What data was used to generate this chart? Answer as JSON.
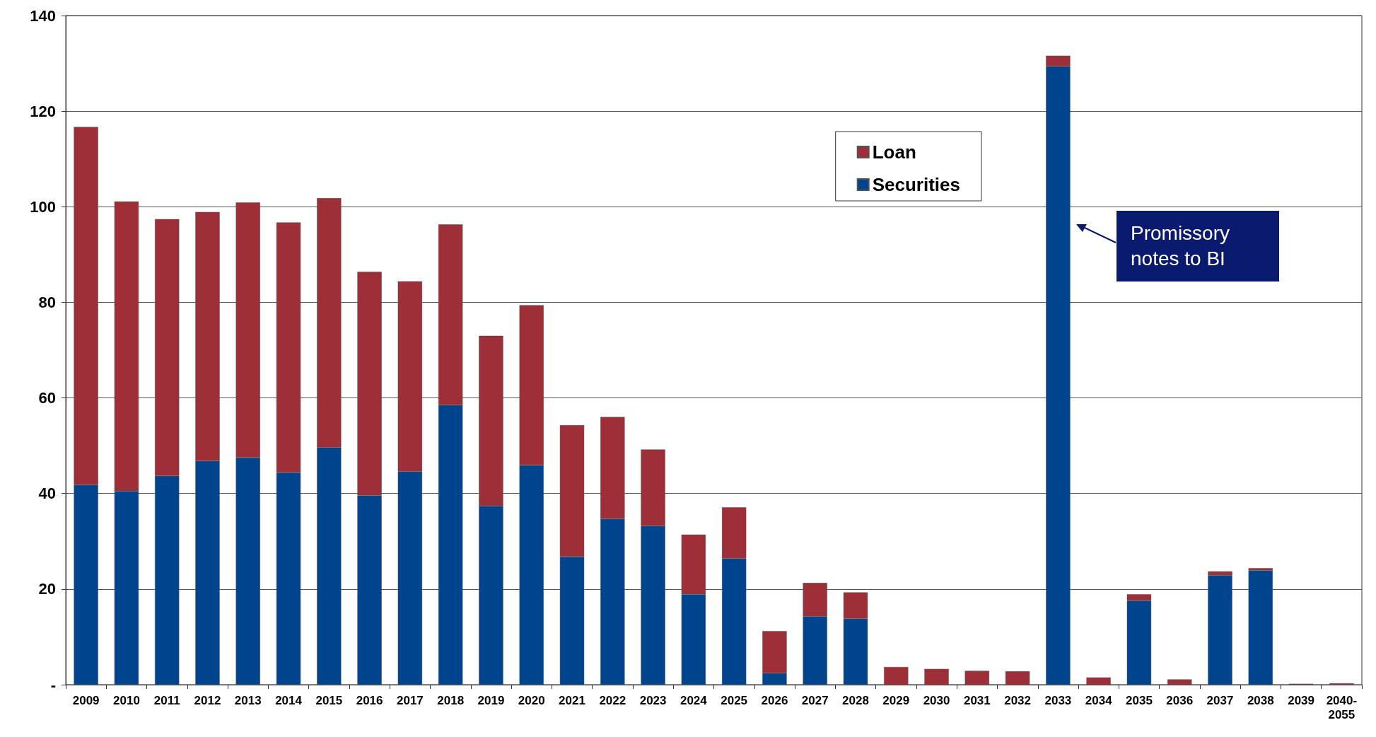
{
  "chart_data": {
    "type": "bar",
    "stacked": true,
    "categories": [
      "2009",
      "2010",
      "2011",
      "2012",
      "2013",
      "2014",
      "2015",
      "2016",
      "2017",
      "2018",
      "2019",
      "2020",
      "2021",
      "2022",
      "2023",
      "2024",
      "2025",
      "2026",
      "2027",
      "2028",
      "2029",
      "2030",
      "2031",
      "2032",
      "2033",
      "2034",
      "2035",
      "2036",
      "2037",
      "2038",
      "2039",
      "2040-\n2055"
    ],
    "series": [
      {
        "name": "Securities",
        "color": "#00448e",
        "values": [
          41.8,
          40.5,
          43.7,
          46.8,
          47.5,
          44.4,
          49.7,
          39.6,
          44.6,
          58.5,
          37.4,
          45.9,
          26.8,
          34.7,
          33.2,
          18.9,
          26.4,
          2.4,
          14.3,
          13.8,
          null,
          null,
          null,
          null,
          129.4,
          null,
          17.6,
          null,
          22.9,
          23.9,
          null,
          null
        ]
      },
      {
        "name": "Loan",
        "color": "#9e2f38",
        "values": [
          74.9,
          60.6,
          53.7,
          52.1,
          53.4,
          52.3,
          52.1,
          46.8,
          39.8,
          37.8,
          35.6,
          33.5,
          27.5,
          21.3,
          16.0,
          12.5,
          10.7,
          8.8,
          7.0,
          5.5,
          3.7,
          3.3,
          2.9,
          2.8,
          2.2,
          1.5,
          1.3,
          1.1,
          0.8,
          0.5,
          0.2,
          0.3
        ]
      }
    ],
    "ylim": [
      0,
      140
    ],
    "yticks": [
      {
        "value": 0,
        "label": "-"
      },
      20,
      40,
      60,
      80,
      100,
      120,
      140
    ],
    "grid": "y",
    "legend": "top right",
    "annotations": [
      "Promissory notes to BI"
    ]
  }
}
